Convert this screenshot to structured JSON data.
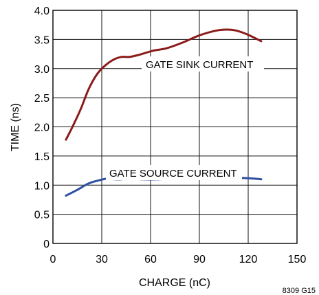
{
  "chart_data": {
    "type": "line",
    "xlabel": "CHARGE (nC)",
    "ylabel": "TIME (ns)",
    "xlim": [
      0,
      150
    ],
    "ylim": [
      0,
      4.0
    ],
    "xticks": [
      0,
      30,
      60,
      90,
      120,
      150
    ],
    "xtick_labels": [
      "0",
      "30",
      "60",
      "90",
      "120",
      "150"
    ],
    "yticks": [
      0,
      0.5,
      1.0,
      1.5,
      2.0,
      2.5,
      3.0,
      3.5,
      4.0
    ],
    "ytick_labels": [
      "0",
      "0.5",
      "1.0",
      "1.5",
      "2.0",
      "2.5",
      "3.0",
      "3.5",
      "4.0"
    ],
    "grid": true,
    "figure_id": "8309 G15",
    "series": [
      {
        "name": "GATE SINK CURRENT",
        "color": "#8b1a1a",
        "x": [
          8,
          12,
          17,
          22,
          27,
          32,
          37,
          42,
          47,
          52,
          57,
          62,
          70,
          80,
          90,
          100,
          107,
          113,
          120,
          128
        ],
        "y": [
          1.78,
          2.0,
          2.3,
          2.65,
          2.9,
          3.05,
          3.15,
          3.2,
          3.2,
          3.23,
          3.27,
          3.31,
          3.35,
          3.45,
          3.57,
          3.65,
          3.67,
          3.65,
          3.58,
          3.47
        ]
      },
      {
        "name": "GATE SOURCE CURRENT",
        "color": "#2f4fa0",
        "x": [
          8,
          15,
          22,
          28,
          33,
          38,
          42,
          47,
          55,
          65,
          75,
          90,
          105,
          120,
          128
        ],
        "y": [
          0.82,
          0.92,
          1.03,
          1.08,
          1.11,
          1.1,
          1.1,
          1.12,
          1.1,
          1.1,
          1.12,
          1.13,
          1.13,
          1.12,
          1.1
        ]
      }
    ]
  }
}
